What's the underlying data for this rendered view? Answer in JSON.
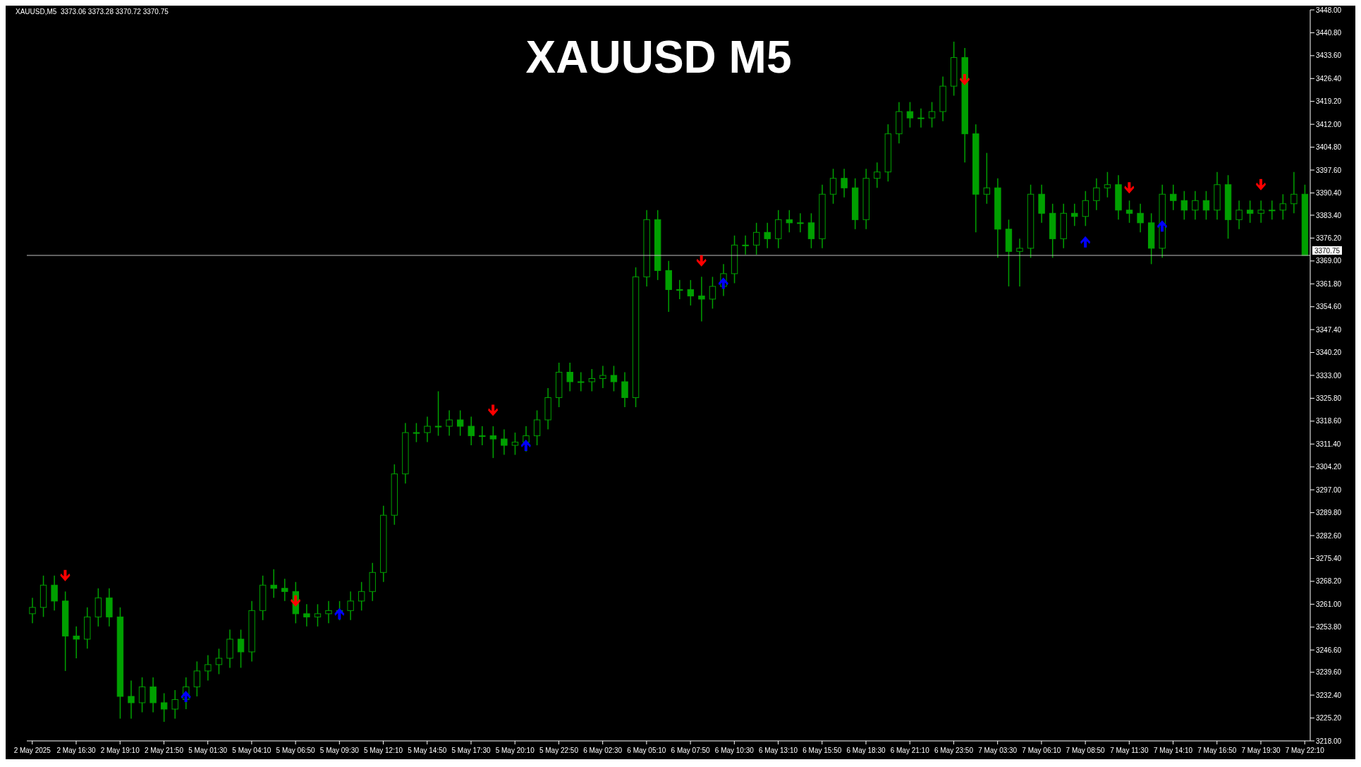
{
  "chart_data": {
    "type": "candlestick",
    "title": "XAUUSD M5",
    "annotations": [
      "XAUUSD,M5  3373.06 3373.28 3370.72 3370.75"
    ],
    "categories": [
      "2 May 2025",
      null,
      null,
      null,
      "2 May 16:30",
      null,
      null,
      null,
      "2 May 19:10",
      null,
      null,
      null,
      "2 May 21:50",
      null,
      null,
      null,
      "5 May 01:30",
      null,
      null,
      null,
      "5 May 04:10",
      null,
      null,
      null,
      "5 May 06:50",
      null,
      null,
      null,
      "5 May 09:30",
      null,
      null,
      null,
      "5 May 12:10",
      null,
      null,
      null,
      "5 May 14:50",
      null,
      null,
      null,
      "5 May 17:30",
      null,
      null,
      null,
      "5 May 20:10",
      null,
      null,
      null,
      "5 May 22:50",
      null,
      null,
      null,
      "6 May 02:30",
      null,
      null,
      null,
      "6 May 05:10",
      null,
      null,
      null,
      "6 May 07:50",
      null,
      null,
      null,
      "6 May 10:30",
      null,
      null,
      null,
      "6 May 13:10",
      null,
      null,
      null,
      "6 May 15:50",
      null,
      null,
      null,
      "6 May 18:30",
      null,
      null,
      null,
      "6 May 21:10",
      null,
      null,
      null,
      "6 May 23:50",
      null,
      null,
      null,
      "7 May 03:30",
      null,
      null,
      null,
      "7 May 06:10",
      null,
      null,
      null,
      "7 May 08:50",
      null,
      null,
      null,
      "7 May 11:30",
      null,
      null,
      null,
      "7 May 14:10",
      null,
      null,
      null,
      "7 May 16:50",
      null,
      null,
      null,
      "7 May 19:30",
      null,
      null,
      null,
      "7 May 22:10"
    ],
    "color": "#00a000",
    "ohlc": [
      [
        3258,
        3263,
        3255,
        3260
      ],
      [
        3260,
        3270,
        3257,
        3267
      ],
      [
        3267,
        3270,
        3259,
        3262
      ],
      [
        3262,
        3265,
        3240,
        3251
      ],
      [
        3251,
        3254,
        3244,
        3250
      ],
      [
        3250,
        3260,
        3247,
        3257
      ],
      [
        3257,
        3266,
        3254,
        3263
      ],
      [
        3263,
        3266,
        3254,
        3257
      ],
      [
        3257,
        3260,
        3225,
        3232
      ],
      [
        3232,
        3237,
        3225,
        3230
      ],
      [
        3230,
        3238,
        3227,
        3235
      ],
      [
        3235,
        3238,
        3227,
        3230
      ],
      [
        3230,
        3233,
        3224,
        3228
      ],
      [
        3228,
        3234,
        3225,
        3231
      ],
      [
        3231,
        3238,
        3228,
        3235
      ],
      [
        3235,
        3243,
        3232,
        3240
      ],
      [
        3240,
        3245,
        3237,
        3242
      ],
      [
        3242,
        3247,
        3239,
        3244
      ],
      [
        3244,
        3253,
        3241,
        3250
      ],
      [
        3250,
        3253,
        3241,
        3246
      ],
      [
        3246,
        3262,
        3243,
        3259
      ],
      [
        3259,
        3270,
        3256,
        3267
      ],
      [
        3267,
        3272,
        3263,
        3266
      ],
      [
        3266,
        3269,
        3262,
        3265
      ],
      [
        3265,
        3268,
        3255,
        3258
      ],
      [
        3258,
        3261,
        3254,
        3257
      ],
      [
        3257,
        3261,
        3254,
        3258
      ],
      [
        3258,
        3262,
        3255,
        3259
      ],
      [
        3259,
        3262,
        3256,
        3259
      ],
      [
        3259,
        3265,
        3256,
        3262
      ],
      [
        3262,
        3268,
        3259,
        3265
      ],
      [
        3265,
        3274,
        3262,
        3271
      ],
      [
        3271,
        3292,
        3268,
        3289
      ],
      [
        3289,
        3305,
        3286,
        3302
      ],
      [
        3302,
        3318,
        3299,
        3315
      ],
      [
        3315,
        3318,
        3312,
        3315
      ],
      [
        3315,
        3320,
        3312,
        3317
      ],
      [
        3317,
        3328,
        3314,
        3317
      ],
      [
        3317,
        3322,
        3314,
        3319
      ],
      [
        3319,
        3322,
        3314,
        3317
      ],
      [
        3317,
        3320,
        3311,
        3314
      ],
      [
        3314,
        3317,
        3311,
        3314
      ],
      [
        3314,
        3317,
        3307,
        3313
      ],
      [
        3313,
        3316,
        3308,
        3311
      ],
      [
        3311,
        3315,
        3308,
        3312
      ],
      [
        3312,
        3317,
        3309,
        3314
      ],
      [
        3314,
        3322,
        3311,
        3319
      ],
      [
        3319,
        3329,
        3316,
        3326
      ],
      [
        3326,
        3337,
        3323,
        3334
      ],
      [
        3334,
        3337,
        3328,
        3331
      ],
      [
        3331,
        3334,
        3328,
        3331
      ],
      [
        3331,
        3335,
        3328,
        3332
      ],
      [
        3332,
        3336,
        3329,
        3333
      ],
      [
        3333,
        3336,
        3328,
        3331
      ],
      [
        3331,
        3334,
        3323,
        3326
      ],
      [
        3326,
        3367,
        3323,
        3364
      ],
      [
        3364,
        3385,
        3361,
        3382
      ],
      [
        3382,
        3385,
        3363,
        3366
      ],
      [
        3366,
        3369,
        3353,
        3360
      ],
      [
        3360,
        3363,
        3357,
        3360
      ],
      [
        3360,
        3363,
        3355,
        3358
      ],
      [
        3358,
        3364,
        3350,
        3357
      ],
      [
        3357,
        3364,
        3354,
        3361
      ],
      [
        3361,
        3368,
        3358,
        3365
      ],
      [
        3365,
        3377,
        3362,
        3374
      ],
      [
        3374,
        3377,
        3371,
        3374
      ],
      [
        3374,
        3381,
        3371,
        3378
      ],
      [
        3378,
        3381,
        3373,
        3376
      ],
      [
        3376,
        3385,
        3373,
        3382
      ],
      [
        3382,
        3385,
        3378,
        3381
      ],
      [
        3381,
        3384,
        3378,
        3381
      ],
      [
        3381,
        3384,
        3373,
        3376
      ],
      [
        3376,
        3393,
        3373,
        3390
      ],
      [
        3390,
        3398,
        3387,
        3395
      ],
      [
        3395,
        3398,
        3389,
        3392
      ],
      [
        3392,
        3395,
        3379,
        3382
      ],
      [
        3382,
        3398,
        3379,
        3395
      ],
      [
        3395,
        3400,
        3392,
        3397
      ],
      [
        3397,
        3412,
        3394,
        3409
      ],
      [
        3409,
        3419,
        3406,
        3416
      ],
      [
        3416,
        3419,
        3411,
        3414
      ],
      [
        3414,
        3417,
        3411,
        3414
      ],
      [
        3414,
        3419,
        3411,
        3416
      ],
      [
        3416,
        3427,
        3413,
        3424
      ],
      [
        3424,
        3438,
        3421,
        3433
      ],
      [
        3433,
        3436,
        3400,
        3409
      ],
      [
        3409,
        3412,
        3378,
        3390
      ],
      [
        3390,
        3403,
        3387,
        3392
      ],
      [
        3392,
        3395,
        3370,
        3379
      ],
      [
        3379,
        3382,
        3361,
        3372
      ],
      [
        3372,
        3376,
        3361,
        3373
      ],
      [
        3373,
        3393,
        3370,
        3390
      ],
      [
        3390,
        3393,
        3381,
        3384
      ],
      [
        3384,
        3387,
        3370,
        3376
      ],
      [
        3376,
        3387,
        3373,
        3384
      ],
      [
        3384,
        3387,
        3380,
        3383
      ],
      [
        3383,
        3391,
        3380,
        3388
      ],
      [
        3388,
        3395,
        3385,
        3392
      ],
      [
        3392,
        3397,
        3389,
        3393
      ],
      [
        3393,
        3396,
        3382,
        3385
      ],
      [
        3385,
        3388,
        3381,
        3384
      ],
      [
        3384,
        3387,
        3378,
        3381
      ],
      [
        3381,
        3384,
        3368,
        3373
      ],
      [
        3373,
        3393,
        3370,
        3390
      ],
      [
        3390,
        3393,
        3385,
        3388
      ],
      [
        3388,
        3391,
        3382,
        3385
      ],
      [
        3385,
        3391,
        3382,
        3388
      ],
      [
        3388,
        3391,
        3382,
        3385
      ],
      [
        3385,
        3397,
        3382,
        3393
      ],
      [
        3393,
        3396,
        3376,
        3382
      ],
      [
        3382,
        3388,
        3379,
        3385
      ],
      [
        3385,
        3388,
        3381,
        3384
      ],
      [
        3384,
        3388,
        3381,
        3385
      ],
      [
        3385,
        3388,
        3382,
        3385
      ],
      [
        3385,
        3390,
        3382,
        3387
      ],
      [
        3387,
        3397,
        3384,
        3390
      ],
      [
        3390,
        3393,
        3370.72,
        3370.75
      ]
    ],
    "series": [
      {
        "type": "scatter",
        "color": "#ff0000",
        "values": [
          null,
          null,
          null,
          3270,
          null,
          null,
          null,
          null,
          null,
          null,
          null,
          null,
          null,
          null,
          null,
          null,
          null,
          null,
          null,
          null,
          null,
          null,
          null,
          null,
          3262,
          null,
          null,
          null,
          null,
          null,
          null,
          null,
          null,
          null,
          null,
          null,
          null,
          null,
          null,
          null,
          null,
          null,
          3322,
          null,
          null,
          null,
          null,
          null,
          null,
          null,
          null,
          null,
          null,
          null,
          null,
          null,
          null,
          null,
          null,
          null,
          null,
          3369,
          null,
          null,
          null,
          null,
          null,
          null,
          null,
          null,
          null,
          null,
          null,
          null,
          null,
          null,
          null,
          null,
          null,
          null,
          null,
          null,
          null,
          null,
          null,
          3426,
          null,
          null,
          null,
          null,
          null,
          null,
          null,
          null,
          null,
          null,
          null,
          null,
          null,
          null,
          3392,
          null,
          null,
          null,
          null,
          null,
          null,
          null,
          null,
          null,
          null,
          null,
          3393,
          null,
          null,
          null,
          null
        ]
      },
      {
        "type": "scatter",
        "color": "#0000ff",
        "values": [
          null,
          null,
          null,
          null,
          null,
          null,
          null,
          null,
          null,
          null,
          null,
          null,
          null,
          null,
          3232,
          null,
          null,
          null,
          null,
          null,
          null,
          null,
          null,
          null,
          null,
          null,
          null,
          null,
          3258,
          null,
          null,
          null,
          null,
          null,
          null,
          null,
          null,
          null,
          null,
          null,
          null,
          null,
          null,
          null,
          null,
          3311,
          null,
          null,
          null,
          null,
          null,
          null,
          null,
          null,
          null,
          null,
          null,
          null,
          null,
          null,
          null,
          null,
          null,
          3362,
          null,
          null,
          null,
          null,
          null,
          null,
          null,
          null,
          null,
          null,
          null,
          null,
          null,
          null,
          null,
          null,
          null,
          null,
          null,
          null,
          null,
          null,
          null,
          null,
          null,
          null,
          null,
          null,
          null,
          null,
          null,
          null,
          3375,
          null,
          null,
          null,
          null,
          null,
          null,
          3380,
          null,
          null,
          null,
          null,
          null,
          null,
          null,
          null,
          null,
          null,
          null,
          null,
          null
        ]
      }
    ],
    "ylim": [
      3218,
      3448
    ],
    "yticks": [
      {
        "value": 3218,
        "label": "3218.00"
      },
      {
        "value": 3225.2,
        "label": "3225.20"
      },
      {
        "value": 3232.4,
        "label": "3232.40"
      },
      {
        "value": 3239.6,
        "label": "3239.60"
      },
      {
        "value": 3246.6,
        "label": "3246.60"
      },
      {
        "value": 3253.8,
        "label": "3253.80"
      },
      {
        "value": 3261,
        "label": "3261.00"
      },
      {
        "value": 3268.2,
        "label": "3268.20"
      },
      {
        "value": 3275.4,
        "label": "3275.40"
      },
      {
        "value": 3282.6,
        "label": "3282.60"
      },
      {
        "value": 3289.8,
        "label": "3289.80"
      },
      {
        "value": 3297,
        "label": "3297.00"
      },
      {
        "value": 3304.2,
        "label": "3304.20"
      },
      {
        "value": 3311.4,
        "label": "3311.40"
      },
      {
        "value": 3318.6,
        "label": "3318.60"
      },
      {
        "value": 3325.8,
        "label": "3325.80"
      },
      {
        "value": 3333,
        "label": "3333.00"
      },
      {
        "value": 3340.2,
        "label": "3340.20"
      },
      {
        "value": 3347.4,
        "label": "3347.40"
      },
      {
        "value": 3354.6,
        "label": "3354.60"
      },
      {
        "value": 3361.8,
        "label": "3361.80"
      },
      {
        "value": 3369,
        "label": "3369.00"
      },
      {
        "value": 3376.2,
        "label": "3376.20"
      },
      {
        "value": 3383.4,
        "label": "3383.40"
      },
      {
        "value": 3390.4,
        "label": "3390.40"
      },
      {
        "value": 3397.6,
        "label": "3397.60"
      },
      {
        "value": 3404.8,
        "label": "3404.80"
      },
      {
        "value": 3412,
        "label": "3412.00"
      },
      {
        "value": 3419.2,
        "label": "3419.20"
      },
      {
        "value": 3426.4,
        "label": "3426.40"
      },
      {
        "value": 3433.6,
        "label": "3433.60"
      },
      {
        "value": 3440.8,
        "label": "3440.80"
      },
      {
        "value": 3448,
        "label": "3448.00"
      }
    ],
    "ref_lines": [
      {
        "axis": "y",
        "value": 3370.75,
        "label": "3370.75",
        "color": "#c0c0c0"
      }
    ]
  }
}
